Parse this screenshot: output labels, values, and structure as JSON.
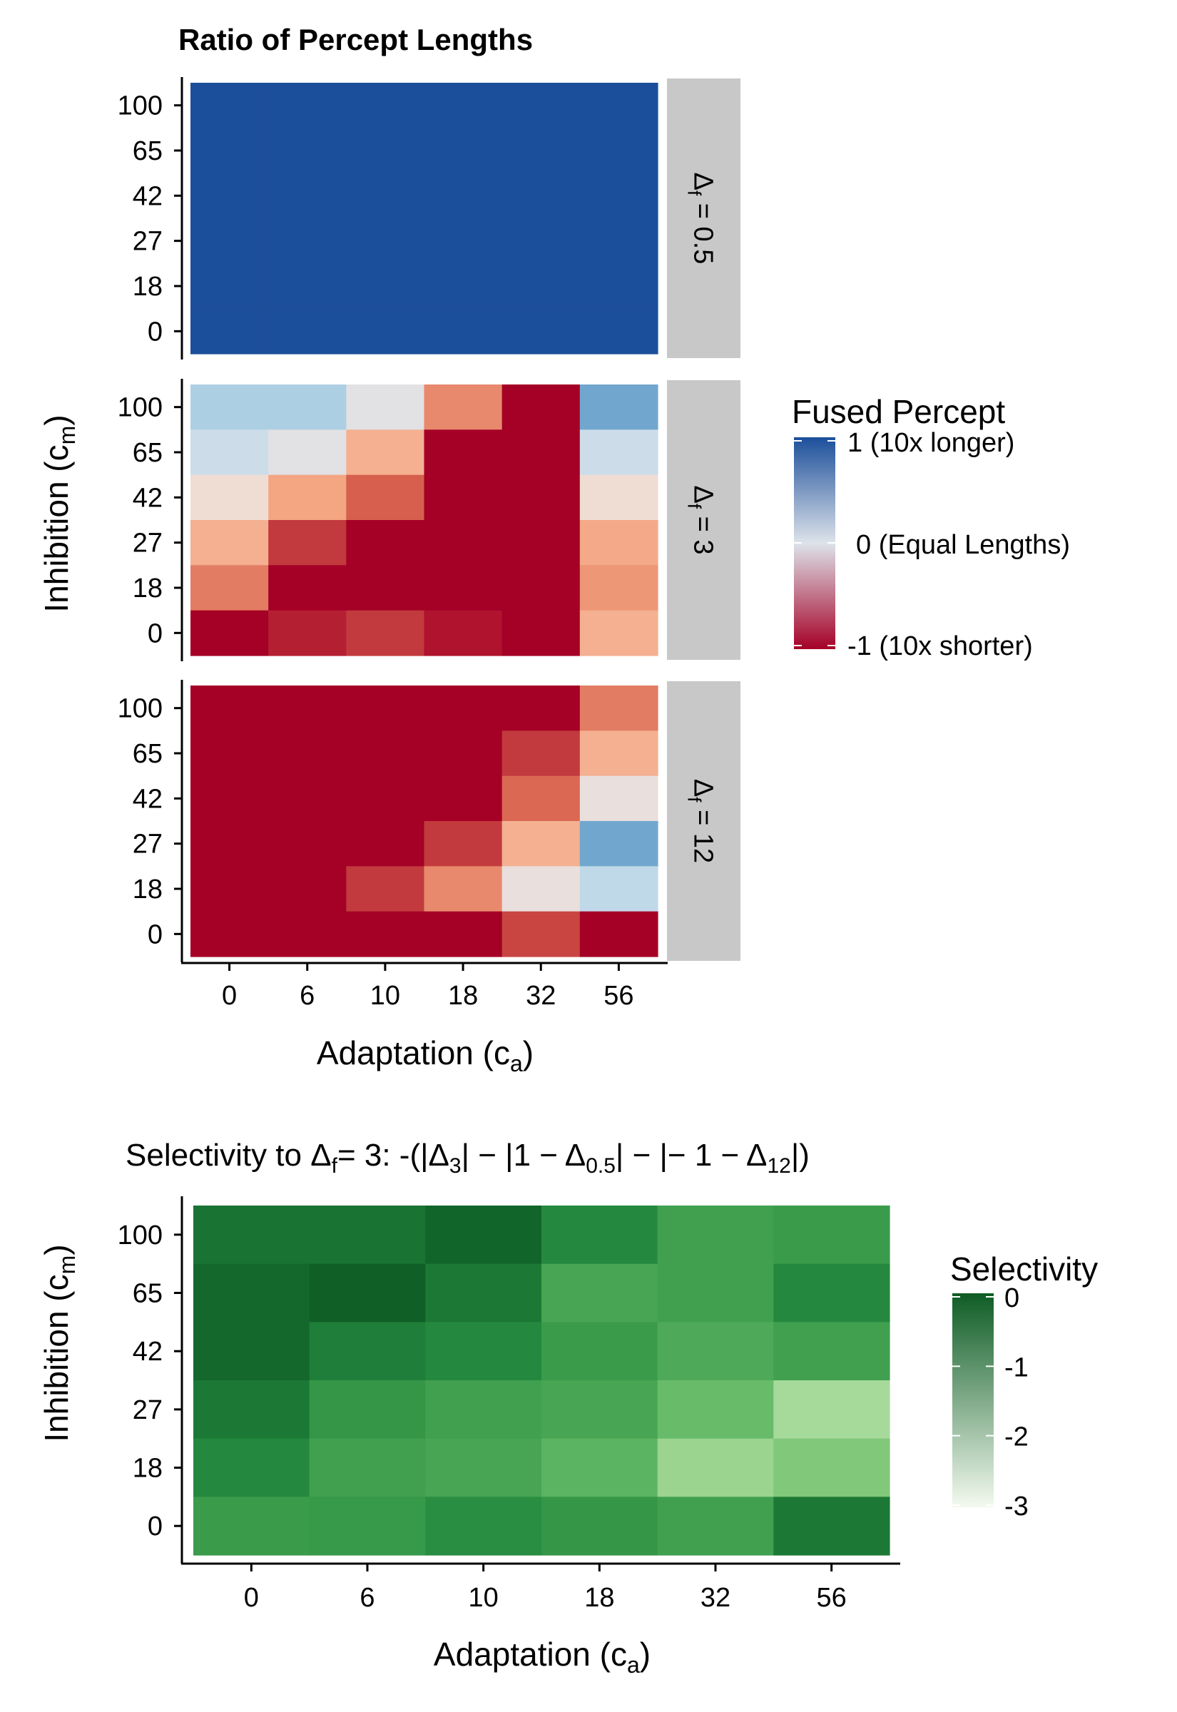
{
  "chart_data": [
    {
      "type": "heatmap",
      "title": "Ratio of Percept Lengths",
      "xlabel": "Adaptation (c",
      "xlabel_sub": "a",
      "ylabel": "Inhibition (c",
      "ylabel_sub": "m",
      "x_categories": [
        "0",
        "6",
        "10",
        "18",
        "32",
        "56"
      ],
      "y_categories": [
        "0",
        "18",
        "27",
        "42",
        "65",
        "100"
      ],
      "facet_prefix": "Δ",
      "facet_sub": "f",
      "legend": {
        "title": "Fused Percept",
        "range": [
          -1,
          1
        ],
        "labels": [
          "1 (10x longer)",
          "0 (Equal Lengths)",
          "-1 (10x shorter)"
        ],
        "colors": [
          "#67001f",
          "#a50026",
          "#b2182b",
          "#d6604d",
          "#f4a582",
          "#fddbc7",
          "#f7f7f7",
          "#d1e5f0",
          "#92c5de",
          "#4393c3",
          "#2166ac",
          "#053061"
        ],
        "color_low": "#a50026",
        "color_mid": "#f4efea",
        "color_high": "#1c4f9b"
      },
      "facets": [
        {
          "label": " = 0.5",
          "rows_top_to_bottom": [
            [
              1,
              1,
              1,
              1,
              1,
              1
            ],
            [
              1,
              1,
              1,
              1,
              1,
              1
            ],
            [
              1,
              1,
              1,
              1,
              1,
              1
            ],
            [
              1,
              1,
              1,
              1,
              1,
              1
            ],
            [
              1,
              1,
              1,
              1,
              1,
              1
            ],
            [
              1,
              1,
              1,
              1,
              1,
              1
            ]
          ]
        },
        {
          "label": " = 3",
          "rows_top_to_bottom": [
            [
              0.3,
              0.3,
              -0.05,
              -0.6,
              -1,
              0.55
            ],
            [
              0.12,
              -0.05,
              -0.45,
              -1,
              -1,
              0.12
            ],
            [
              -0.18,
              -0.5,
              -0.75,
              -1,
              -1,
              -0.18
            ],
            [
              -0.45,
              -0.85,
              -1,
              -1,
              -1,
              -0.48
            ],
            [
              -0.65,
              -1,
              -1,
              -1,
              -1,
              -0.55
            ],
            [
              -1,
              -0.92,
              -0.85,
              -0.95,
              -1,
              -0.45
            ]
          ]
        },
        {
          "label": " = 12",
          "rows_top_to_bottom": [
            [
              -1,
              -1,
              -1,
              -1,
              -1,
              -0.65
            ],
            [
              -1,
              -1,
              -1,
              -1,
              -0.85,
              -0.45
            ],
            [
              -1,
              -1,
              -1,
              -1,
              -0.72,
              -0.12
            ],
            [
              -1,
              -1,
              -1,
              -0.85,
              -0.45,
              0.55
            ],
            [
              -1,
              -1,
              -0.85,
              -0.6,
              -0.12,
              0.2
            ],
            [
              -1,
              -1,
              -1,
              -1,
              -0.82,
              -1
            ]
          ]
        }
      ]
    },
    {
      "type": "heatmap",
      "title": "Selectivity to Δ",
      "title_sub1": "f",
      "title_mid": "= 3: -(|Δ",
      "title_sub2": "3",
      "title_mid2": "| − |1 − Δ",
      "title_sub3": "0.5",
      "title_mid3": "| − |− 1 − Δ",
      "title_sub4": "12",
      "title_end": "|)",
      "xlabel": "Adaptation (c",
      "xlabel_sub": "a",
      "ylabel": "Inhibition (c",
      "ylabel_sub": "m",
      "x_categories": [
        "0",
        "6",
        "10",
        "18",
        "32",
        "56"
      ],
      "y_categories": [
        "0",
        "18",
        "27",
        "42",
        "65",
        "100"
      ],
      "legend": {
        "title": "Selectivity",
        "range": [
          -3,
          0
        ],
        "ticks": [
          "0",
          "-1",
          "-2",
          "-3"
        ],
        "tick_values": [
          0,
          -1,
          -2,
          -3
        ],
        "colors": [
          "#f7fcf5",
          "#e5f5e0",
          "#c7e9c0",
          "#a1d99b",
          "#74c476",
          "#41ab5d",
          "#238b45",
          "#006d2c",
          "#00441b"
        ],
        "color_low": "#f3faef",
        "color_high": "#0e5c25"
      },
      "rows_top_to_bottom": [
        [
          -0.4,
          -0.4,
          -0.15,
          -0.8,
          -1.3,
          -1.2
        ],
        [
          -0.2,
          -0.05,
          -0.5,
          -1.4,
          -1.3,
          -0.8
        ],
        [
          -0.2,
          -0.6,
          -0.8,
          -1.2,
          -1.5,
          -1.3
        ],
        [
          -0.5,
          -1.1,
          -1.3,
          -1.4,
          -1.8,
          -2.3
        ],
        [
          -0.8,
          -1.3,
          -1.4,
          -1.7,
          -2.2,
          -2.0
        ],
        [
          -1.2,
          -1.15,
          -0.9,
          -1.1,
          -1.3,
          -0.5
        ]
      ]
    }
  ]
}
